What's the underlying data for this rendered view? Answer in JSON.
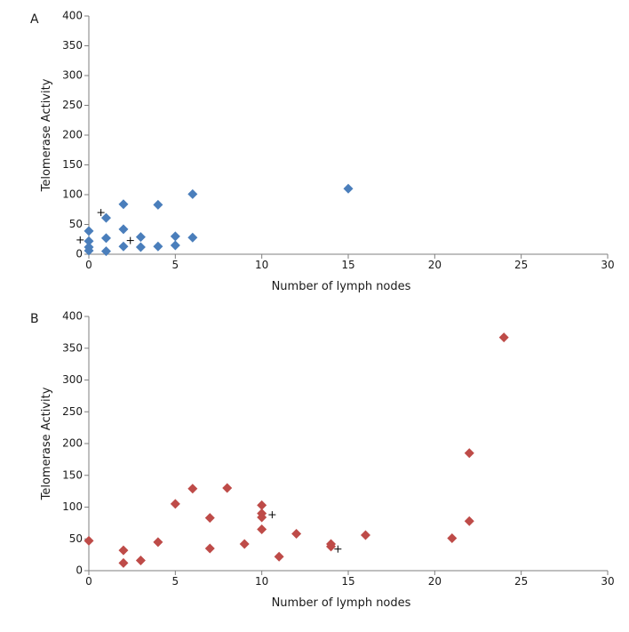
{
  "chart_data": [
    {
      "type": "scatter",
      "panel_label": "A",
      "title": "",
      "xlabel": "Number of lymph nodes",
      "ylabel": "Telomerase Activity",
      "xlim": [
        0,
        30
      ],
      "ylim": [
        0,
        400
      ],
      "xticks": [
        0,
        5,
        10,
        15,
        20,
        25,
        30
      ],
      "yticks": [
        0,
        50,
        100,
        150,
        200,
        250,
        300,
        350,
        400
      ],
      "grid": false,
      "marker_color": "#4a7ebb",
      "marker": "diamond",
      "series": [
        {
          "points": [
            {
              "x": 0,
              "y": 6
            },
            {
              "x": 0,
              "y": 12
            },
            {
              "x": 0,
              "y": 22
            },
            {
              "x": 0,
              "y": 39
            },
            {
              "x": 1,
              "y": 5
            },
            {
              "x": 1,
              "y": 27
            },
            {
              "x": 1,
              "y": 61
            },
            {
              "x": 2,
              "y": 13
            },
            {
              "x": 2,
              "y": 42
            },
            {
              "x": 2,
              "y": 84
            },
            {
              "x": 3,
              "y": 12
            },
            {
              "x": 3,
              "y": 29
            },
            {
              "x": 4,
              "y": 13
            },
            {
              "x": 4,
              "y": 83
            },
            {
              "x": 5,
              "y": 15
            },
            {
              "x": 5,
              "y": 30
            },
            {
              "x": 6,
              "y": 28
            },
            {
              "x": 6,
              "y": 101
            },
            {
              "x": 15,
              "y": 110
            }
          ]
        }
      ],
      "cross_annotations": [
        {
          "x": -0.5,
          "y": 24
        },
        {
          "x": 0.7,
          "y": 70
        },
        {
          "x": 2.4,
          "y": 23
        }
      ]
    },
    {
      "type": "scatter",
      "panel_label": "B",
      "title": "",
      "xlabel": "Number of lymph nodes",
      "ylabel": "Telomerase Activity",
      "xlim": [
        0,
        30
      ],
      "ylim": [
        0,
        400
      ],
      "xticks": [
        0,
        5,
        10,
        15,
        20,
        25,
        30
      ],
      "yticks": [
        0,
        50,
        100,
        150,
        200,
        250,
        300,
        350,
        400
      ],
      "grid": false,
      "marker_color": "#be4b48",
      "marker": "diamond",
      "series": [
        {
          "points": [
            {
              "x": 0,
              "y": 47
            },
            {
              "x": 2,
              "y": 12
            },
            {
              "x": 2,
              "y": 32
            },
            {
              "x": 3,
              "y": 16
            },
            {
              "x": 4,
              "y": 45
            },
            {
              "x": 5,
              "y": 105
            },
            {
              "x": 6,
              "y": 129
            },
            {
              "x": 7,
              "y": 35
            },
            {
              "x": 7,
              "y": 83
            },
            {
              "x": 8,
              "y": 130
            },
            {
              "x": 9,
              "y": 42
            },
            {
              "x": 10,
              "y": 65
            },
            {
              "x": 10,
              "y": 84
            },
            {
              "x": 10,
              "y": 90
            },
            {
              "x": 10,
              "y": 103
            },
            {
              "x": 11,
              "y": 22
            },
            {
              "x": 12,
              "y": 58
            },
            {
              "x": 14,
              "y": 38
            },
            {
              "x": 14,
              "y": 42
            },
            {
              "x": 16,
              "y": 56
            },
            {
              "x": 21,
              "y": 51
            },
            {
              "x": 22,
              "y": 78
            },
            {
              "x": 22,
              "y": 185
            },
            {
              "x": 24,
              "y": 367
            }
          ]
        }
      ],
      "cross_annotations": [
        {
          "x": 10.6,
          "y": 88
        },
        {
          "x": 14.4,
          "y": 34
        }
      ]
    }
  ]
}
